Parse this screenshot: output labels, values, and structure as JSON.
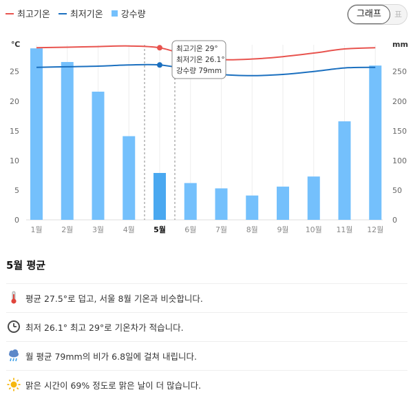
{
  "legend": {
    "max_label": "최고기온",
    "min_label": "최저기온",
    "rain_label": "강수량"
  },
  "toggle": {
    "graph_label": "그래프",
    "table_label": "표"
  },
  "colors": {
    "max": "#e8534e",
    "min": "#1a6fbf",
    "rain": "#74c0fc",
    "rain_selected": "#4aa8f0"
  },
  "chart_data": {
    "type": "bar+line",
    "categories": [
      "1월",
      "2월",
      "3월",
      "4월",
      "5월",
      "6월",
      "7월",
      "8월",
      "9월",
      "10월",
      "11월",
      "12월"
    ],
    "selected_index": 4,
    "left_axis": {
      "unit": "℃",
      "ylim": [
        0,
        29.5
      ],
      "ticks": [
        0,
        5,
        10,
        15,
        20,
        25
      ]
    },
    "right_axis": {
      "unit": "mm",
      "ylim": [
        0,
        295
      ],
      "ticks": [
        0,
        50,
        100,
        150,
        200,
        250
      ]
    },
    "series": [
      {
        "name": "최고기온",
        "type": "line",
        "axis": "left",
        "values": [
          29.0,
          29.1,
          29.2,
          29.3,
          29.0,
          27.6,
          27.0,
          27.1,
          27.5,
          28.1,
          28.8,
          29.0
        ]
      },
      {
        "name": "최저기온",
        "type": "line",
        "axis": "left",
        "values": [
          25.7,
          25.8,
          25.9,
          26.1,
          26.1,
          25.3,
          24.5,
          24.3,
          24.5,
          25.0,
          25.6,
          25.7
        ]
      },
      {
        "name": "강수량",
        "type": "bar",
        "axis": "right",
        "values": [
          289,
          266,
          216,
          141,
          79,
          62,
          53,
          41,
          56,
          73,
          166,
          260
        ]
      }
    ],
    "tooltip": [
      "최고기온 29°",
      "최저기온 26.1°",
      "강수량 79mm"
    ]
  },
  "summary": {
    "title": "5월 평균",
    "items": [
      {
        "icon": "thermometer-icon",
        "text": "평균 27.5°로 덥고, 서울 8월 기온과 비슷합니다."
      },
      {
        "icon": "clock-icon",
        "text": "최저 26.1° 최고 29°로 기온차가 적습니다."
      },
      {
        "icon": "rain-cloud-icon",
        "text": "월 평균 79mm의 비가 6.8일에 걸쳐 내립니다."
      },
      {
        "icon": "sun-icon",
        "text": "맑은 시간이 69% 정도로 맑은 날이 더 많습니다."
      }
    ]
  }
}
